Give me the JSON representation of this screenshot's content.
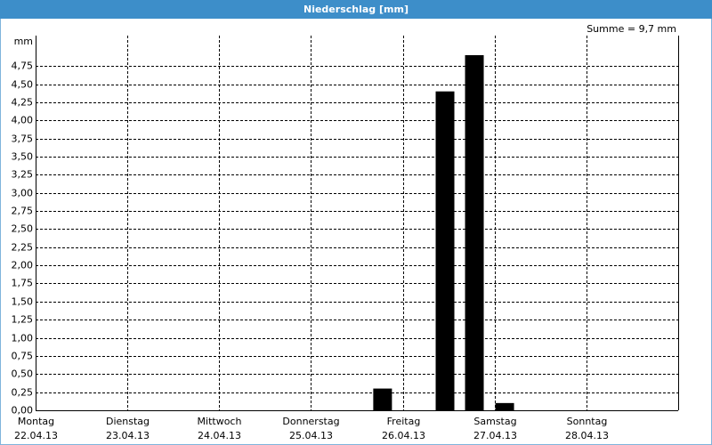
{
  "chart_data": {
    "type": "bar",
    "title": "Niederschlag [mm]",
    "y_label": "mm",
    "annotation": "Summe = 9,7 mm",
    "x": [
      3.78,
      4.46,
      4.78,
      5.11
    ],
    "values": [
      0.3,
      4.4,
      4.9,
      0.1
    ],
    "color": "#000000",
    "xlim": [
      0,
      7
    ],
    "xticks": [
      {
        "value": 0,
        "label": [
          "Montag",
          "22.04.13"
        ]
      },
      {
        "value": 1,
        "label": [
          "Dienstag",
          "23.04.13"
        ]
      },
      {
        "value": 2,
        "label": [
          "Mittwoch",
          "24.04.13"
        ]
      },
      {
        "value": 3,
        "label": [
          "Donnerstag",
          "25.04.13"
        ]
      },
      {
        "value": 4,
        "label": [
          "Freitag",
          "26.04.13"
        ]
      },
      {
        "value": 5,
        "label": [
          "Samstag",
          "27.04.13"
        ]
      },
      {
        "value": 6,
        "label": [
          "Sonntag",
          "28.04.13"
        ]
      }
    ],
    "ylim": [
      0,
      5.17
    ],
    "yticks": [
      {
        "value": 0,
        "label": "0,00"
      },
      {
        "value": 0.25,
        "label": "0,25"
      },
      {
        "value": 0.5,
        "label": "0,50"
      },
      {
        "value": 0.75,
        "label": "0,75"
      },
      {
        "value": 1,
        "label": "1,00"
      },
      {
        "value": 1.25,
        "label": "1,25"
      },
      {
        "value": 1.5,
        "label": "1,50"
      },
      {
        "value": 1.75,
        "label": "1,75"
      },
      {
        "value": 2,
        "label": "2,00"
      },
      {
        "value": 2.25,
        "label": "2,25"
      },
      {
        "value": 2.5,
        "label": "2,50"
      },
      {
        "value": 2.75,
        "label": "2,75"
      },
      {
        "value": 3,
        "label": "3,00"
      },
      {
        "value": 3.25,
        "label": "3,25"
      },
      {
        "value": 3.5,
        "label": "3,50"
      },
      {
        "value": 3.75,
        "label": "3,75"
      },
      {
        "value": 4,
        "label": "4,00"
      },
      {
        "value": 4.25,
        "label": "4,25"
      },
      {
        "value": 4.5,
        "label": "4,50"
      },
      {
        "value": 4.75,
        "label": "4,75"
      }
    ],
    "grid": true
  }
}
